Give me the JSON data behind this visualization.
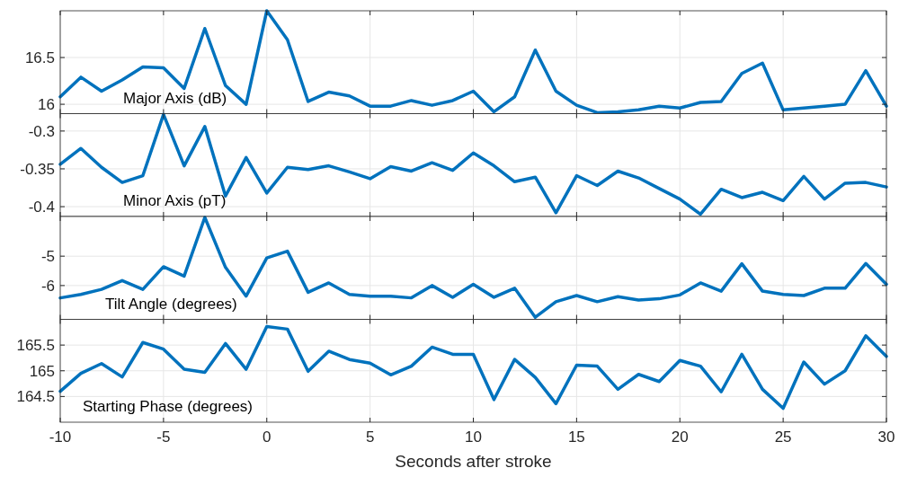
{
  "chart_data": [
    {
      "type": "line",
      "x": [
        -10,
        -9,
        -8,
        -7,
        -6,
        -5,
        -4,
        -3,
        -2,
        -1,
        0,
        1,
        2,
        3,
        4,
        5,
        6,
        7,
        8,
        9,
        10,
        11,
        12,
        13,
        14,
        15,
        16,
        17,
        18,
        19,
        20,
        21,
        22,
        23,
        24,
        25,
        26,
        27,
        28,
        29,
        30
      ],
      "series": [
        {
          "color": "#0072bd",
          "values": [
            16.08,
            16.29,
            16.14,
            16.26,
            16.4,
            16.39,
            16.17,
            16.81,
            16.2,
            16.0,
            17.0,
            16.69,
            16.03,
            16.13,
            16.09,
            15.98,
            15.98,
            16.04,
            15.99,
            16.04,
            16.14,
            15.92,
            16.08,
            16.58,
            16.14,
            15.99,
            15.91,
            15.92,
            15.94,
            15.98,
            15.96,
            16.02,
            16.03,
            16.33,
            16.44,
            15.94,
            15.96,
            15.98,
            16.0,
            16.36,
            15.98
          ]
        }
      ],
      "xlim": [
        -10,
        30
      ],
      "xticks": [
        -10,
        -5,
        0,
        5,
        10,
        15,
        20,
        25,
        30
      ],
      "ylim": [
        15.9,
        17.0
      ],
      "yticks": [
        16,
        16.5
      ],
      "grid": true,
      "tick_labels": "y",
      "annotations": [
        "Major Axis (dB)"
      ]
    },
    {
      "type": "line",
      "x": [
        -10,
        -9,
        -8,
        -7,
        -6,
        -5,
        -4,
        -3,
        -2,
        -1,
        0,
        1,
        2,
        3,
        4,
        5,
        6,
        7,
        8,
        9,
        10,
        11,
        12,
        13,
        14,
        15,
        16,
        17,
        18,
        19,
        20,
        21,
        22,
        23,
        24,
        25,
        26,
        27,
        28,
        29,
        30
      ],
      "series": [
        {
          "color": "#0072bd",
          "values": [
            -0.344,
            -0.323,
            -0.348,
            -0.368,
            -0.359,
            -0.278,
            -0.346,
            -0.294,
            -0.386,
            -0.335,
            -0.382,
            -0.348,
            -0.351,
            -0.346,
            -0.354,
            -0.363,
            -0.347,
            -0.353,
            -0.342,
            -0.352,
            -0.329,
            -0.346,
            -0.367,
            -0.361,
            -0.408,
            -0.359,
            -0.372,
            -0.353,
            -0.362,
            -0.376,
            -0.39,
            -0.41,
            -0.377,
            -0.388,
            -0.381,
            -0.392,
            -0.36,
            -0.39,
            -0.369,
            -0.368,
            -0.374
          ]
        }
      ],
      "xlim": [
        -10,
        30
      ],
      "xticks": [
        -10,
        -5,
        0,
        5,
        10,
        15,
        20,
        25,
        30
      ],
      "ylim": [
        -0.413,
        -0.277
      ],
      "yticks": [
        -0.4,
        -0.35,
        -0.3
      ],
      "grid": true,
      "tick_labels": "y",
      "annotations": [
        "Minor Axis (pT)"
      ]
    },
    {
      "type": "line",
      "x": [
        -10,
        -9,
        -8,
        -7,
        -6,
        -5,
        -4,
        -3,
        -2,
        -1,
        0,
        1,
        2,
        3,
        4,
        5,
        6,
        7,
        8,
        9,
        10,
        11,
        12,
        13,
        14,
        15,
        16,
        17,
        18,
        19,
        20,
        21,
        22,
        23,
        24,
        25,
        26,
        27,
        28,
        29,
        30
      ],
      "series": [
        {
          "color": "#0072bd",
          "values": [
            -6.42,
            -6.3,
            -6.13,
            -5.83,
            -6.13,
            -5.36,
            -5.68,
            -3.68,
            -5.38,
            -6.36,
            -5.06,
            -4.83,
            -6.23,
            -5.91,
            -6.3,
            -6.36,
            -6.36,
            -6.42,
            -6.0,
            -6.4,
            -5.96,
            -6.4,
            -6.09,
            -7.08,
            -6.55,
            -6.34,
            -6.55,
            -6.38,
            -6.49,
            -6.45,
            -6.32,
            -5.91,
            -6.19,
            -5.26,
            -6.19,
            -6.3,
            -6.34,
            -6.09,
            -6.09,
            -5.25,
            -5.96
          ]
        }
      ],
      "xlim": [
        -10,
        30
      ],
      "xticks": [
        -10,
        -5,
        0,
        5,
        10,
        15,
        20,
        25,
        30
      ],
      "ylim": [
        -7.15,
        -3.65
      ],
      "yticks": [
        -6,
        -5
      ],
      "grid": true,
      "tick_labels": "y",
      "annotations": [
        "Tilt Angle (degrees)"
      ]
    },
    {
      "type": "line",
      "x": [
        -10,
        -9,
        -8,
        -7,
        -6,
        -5,
        -4,
        -3,
        -2,
        -1,
        0,
        1,
        2,
        3,
        4,
        5,
        6,
        7,
        8,
        9,
        10,
        11,
        12,
        13,
        14,
        15,
        16,
        17,
        18,
        19,
        20,
        21,
        22,
        23,
        24,
        25,
        26,
        27,
        28,
        29,
        30
      ],
      "series": [
        {
          "color": "#0072bd",
          "values": [
            164.6,
            164.95,
            165.14,
            164.88,
            165.55,
            165.42,
            165.03,
            164.97,
            165.53,
            165.03,
            165.86,
            165.81,
            164.99,
            165.38,
            165.22,
            165.15,
            164.92,
            165.09,
            165.46,
            165.32,
            165.32,
            164.44,
            165.22,
            164.87,
            164.36,
            165.11,
            165.09,
            164.64,
            164.93,
            164.79,
            165.2,
            165.09,
            164.59,
            165.32,
            164.64,
            164.27,
            165.17,
            164.74,
            165.0,
            165.68,
            165.28
          ]
        }
      ],
      "xlim": [
        -10,
        30
      ],
      "xticks": [
        -10,
        -5,
        0,
        5,
        10,
        15,
        20,
        25,
        30
      ],
      "ylim": [
        164.0,
        166.0
      ],
      "yticks": [
        164.5,
        165,
        165.5
      ],
      "grid": true,
      "xlabel": "Seconds after stroke",
      "annotations": [
        "Starting Phase (degrees)"
      ]
    }
  ]
}
